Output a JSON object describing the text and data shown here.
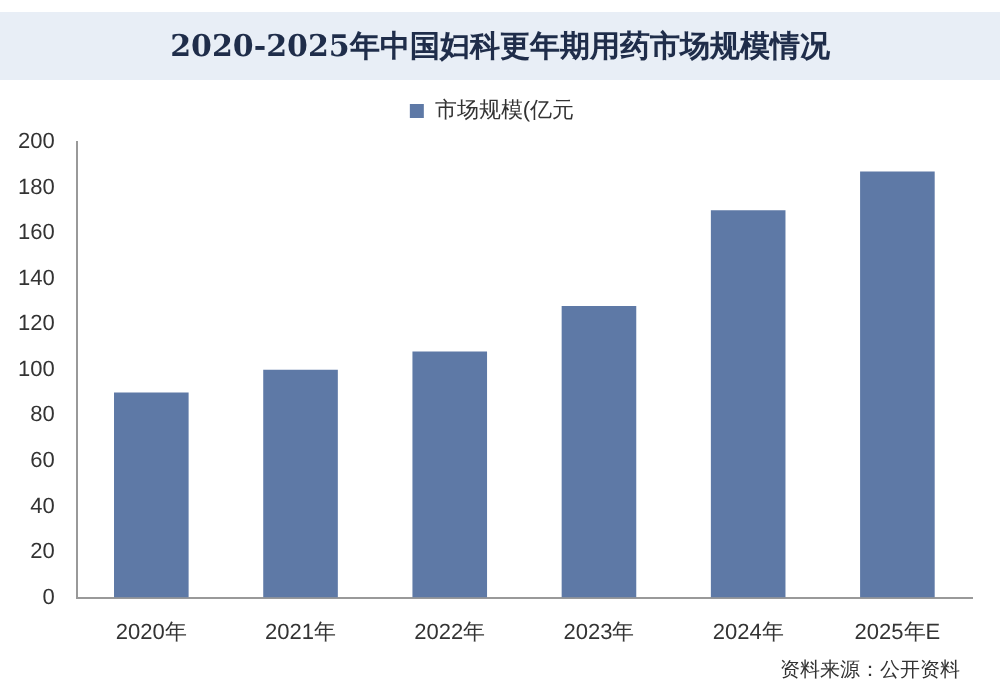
{
  "chart_data": {
    "type": "bar",
    "title": "2020-2025年中国妇科更年期用药市场规模情况",
    "categories": [
      "2020年",
      "2021年",
      "2022年",
      "2023年",
      "2024年",
      "2025年E"
    ],
    "series": [
      {
        "name": "市场规模(亿元",
        "color": "#5e79a6",
        "values": [
          90,
          100,
          108,
          128,
          170,
          187
        ]
      }
    ],
    "ylim": [
      0,
      200
    ],
    "yticks": [
      0,
      20,
      40,
      60,
      80,
      100,
      120,
      140,
      160,
      180,
      200
    ],
    "grid": false,
    "legend": "top",
    "annotations": [
      "资料来源：公开资料"
    ]
  }
}
